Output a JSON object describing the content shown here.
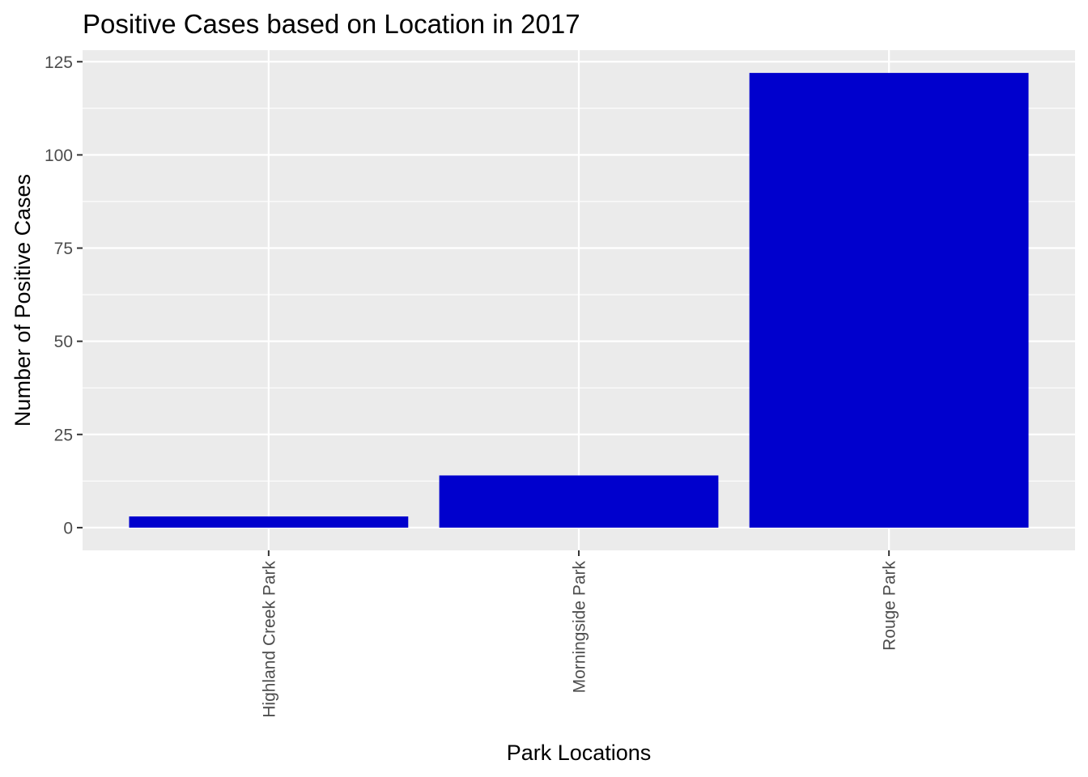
{
  "chart_data": {
    "type": "bar",
    "title": "Positive Cases based on Location in 2017",
    "xlabel": "Park Locations",
    "ylabel": "Number of Positive Cases",
    "categories": [
      "Highland Creek Park",
      "Morningside Park",
      "Rouge Park"
    ],
    "values": [
      3,
      14,
      122
    ],
    "ylim": [
      -6.1,
      128.1
    ],
    "yticks": [
      0,
      25,
      50,
      75,
      100,
      125
    ],
    "grid": true,
    "legend": "none",
    "colors": {
      "bar": "#0000cd",
      "panel": "#ebebeb",
      "grid": "#ffffff",
      "tick_text": "#4d4d4d",
      "text": "#000000"
    }
  }
}
